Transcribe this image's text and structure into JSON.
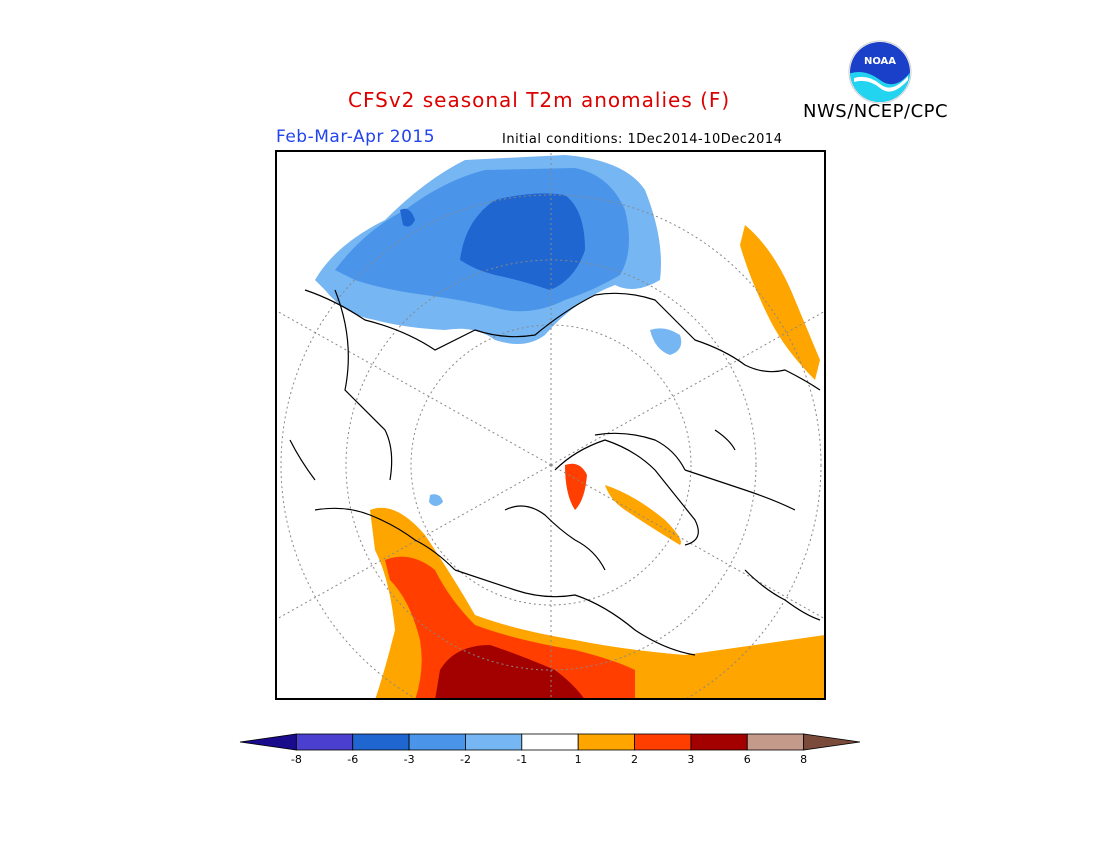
{
  "header": {
    "title": "CFSv2 seasonal T2m anomalies (F)",
    "period": "Feb-Mar-Apr 2015",
    "initial_conditions": "Initial conditions: 1Dec2014-10Dec2014",
    "agency": "NWS/NCEP/CPC",
    "logo_text": "NOAA"
  },
  "colors": {
    "title": "#dd0000",
    "period": "#2244ee",
    "frame": "#000000"
  },
  "legend": {
    "bins": [
      {
        "color": "#1a0a8c"
      },
      {
        "color": "#4b3fd0"
      },
      {
        "color": "#1f66d1"
      },
      {
        "color": "#4a95ea"
      },
      {
        "color": "#76b6f2"
      },
      {
        "color": "#ffffff"
      },
      {
        "color": "#ffa500"
      },
      {
        "color": "#ff3e00"
      },
      {
        "color": "#a30000"
      },
      {
        "color": "#c49a8a"
      },
      {
        "color": "#7a4a3a"
      }
    ],
    "tick_labels": [
      "-8",
      "-6",
      "-3",
      "-2",
      "-1",
      "1",
      "2",
      "3",
      "6",
      "8"
    ]
  }
}
